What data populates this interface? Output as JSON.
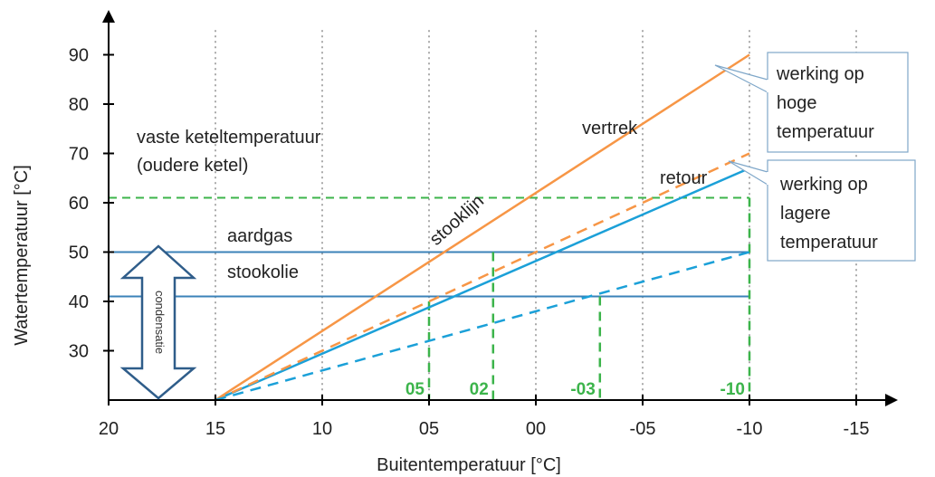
{
  "chart_data": {
    "type": "line",
    "xlabel": "Buitentemperatuur [°C]",
    "ylabel": "Watertemperatuur [°C]",
    "xlim": [
      20,
      -17
    ],
    "ylim": [
      20,
      95
    ],
    "x_ticks": [
      20,
      15,
      10,
      5,
      0,
      -5,
      -10,
      -15
    ],
    "x_tick_labels": [
      "20",
      "15",
      "10",
      "05",
      "00",
      "-05",
      "-10",
      "-15"
    ],
    "y_ticks": [
      30,
      40,
      50,
      60,
      70,
      80,
      90
    ],
    "y_tick_labels": [
      "30",
      "40",
      "50",
      "60",
      "70",
      "80",
      "90"
    ],
    "grid": "vertical dotted",
    "series": [
      {
        "name": "vertrek",
        "style": "solid",
        "color": "#f79646",
        "x": [
          15,
          -10
        ],
        "y": [
          20,
          90
        ]
      },
      {
        "name": "retour",
        "style": "solid",
        "color": "#1ba0d8",
        "x": [
          15,
          -10
        ],
        "y": [
          20,
          67
        ]
      },
      {
        "style": "dashed",
        "color": "#f79646",
        "x": [
          15,
          -10
        ],
        "y": [
          20,
          70
        ]
      },
      {
        "style": "dashed",
        "color": "#1ba0d8",
        "x": [
          15,
          -10
        ],
        "y": [
          20,
          50
        ]
      }
    ],
    "horizontal_lines": [
      {
        "label": "vaste keteltemperatuur (oudere ketel)",
        "y": 70,
        "x_end": 20,
        "color": "#3cb44b",
        "style": "solid"
      },
      {
        "y": 61,
        "x_end": -10,
        "color": "#3cb44b",
        "style": "dashed"
      },
      {
        "label": "aardgas",
        "y": 50,
        "x_end": -10,
        "color": "#3b82b8",
        "style": "solid"
      },
      {
        "label": "stookolie",
        "y": 41,
        "x_end": -10,
        "color": "#3b82b8",
        "style": "solid"
      }
    ],
    "vertical_markers": [
      {
        "label": "05",
        "x": 5,
        "y_top": 40,
        "color": "#3cb44b"
      },
      {
        "label": "02",
        "x": 2,
        "y_top": 50,
        "color": "#3cb44b"
      },
      {
        "label": "-03",
        "x": -3,
        "y_top": 41,
        "color": "#3cb44b"
      },
      {
        "label": "-10",
        "x": -10,
        "y_top": 61,
        "color": "#3cb44b"
      }
    ],
    "annotations": {
      "line1": "vaste keteltemperatuur",
      "line2": "(oudere ketel)",
      "vertrek": "vertrek",
      "retour": "retour",
      "stooklijn": "stooklijn",
      "aardgas": "aardgas",
      "stookolie": "stookolie",
      "condensatie": "condensatie"
    },
    "callouts": {
      "high": [
        "werking op",
        "hoge",
        "temperatuur"
      ],
      "low": [
        "werking op",
        "lagere",
        "temperatuur"
      ]
    },
    "colors": {
      "orange": "#f79646",
      "blue": "#1ba0d8",
      "green": "#3cb44b",
      "steel_blue": "#3b82b8",
      "axis": "#000000",
      "callout_border": "#7fa7c9"
    }
  }
}
